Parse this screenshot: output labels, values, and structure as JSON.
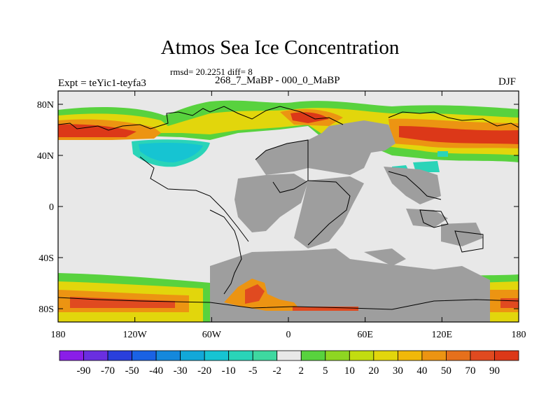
{
  "figure": {
    "title": "Atmos Sea Ice Concentration",
    "stats": "rmsd= 20.2251 diff= 8",
    "experiment": "Expt = teYic1-teyfa3",
    "period": "268_7_MaBP - 000_0_MaBP",
    "season": "DJF"
  },
  "axes": {
    "lat_ticks": [
      {
        "label": "80N",
        "value": 80
      },
      {
        "label": "40N",
        "value": 40
      },
      {
        "label": "0",
        "value": 0
      },
      {
        "label": "40S",
        "value": -40
      },
      {
        "label": "80S",
        "value": -80
      }
    ],
    "lon_ticks": [
      {
        "label": "180",
        "value": -180
      },
      {
        "label": "120W",
        "value": -120
      },
      {
        "label": "60W",
        "value": -60
      },
      {
        "label": "0",
        "value": 0
      },
      {
        "label": "60E",
        "value": 60
      },
      {
        "label": "120E",
        "value": 120
      },
      {
        "label": "180",
        "value": 180
      }
    ]
  },
  "colorbar": {
    "labels": [
      "-90",
      "-70",
      "-50",
      "-40",
      "-30",
      "-20",
      "-10",
      "-5",
      "-2",
      "2",
      "5",
      "10",
      "20",
      "30",
      "40",
      "50",
      "70",
      "90"
    ],
    "colors": [
      "#8a1ee8",
      "#6a2fe0",
      "#2a3fdc",
      "#1a62e4",
      "#1588dc",
      "#12a8d8",
      "#16c4d2",
      "#2ad4b8",
      "#3ed8a0",
      "#e8e8e8",
      "#58d23e",
      "#8ed622",
      "#c2dc10",
      "#e2d60c",
      "#f0b80a",
      "#ec9412",
      "#e6701c",
      "#e04a20",
      "#dc3818"
    ]
  },
  "map": {
    "ocean_color": "#e8e8e8",
    "land_color": "#9e9e9e"
  }
}
